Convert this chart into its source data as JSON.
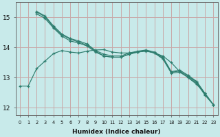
{
  "xlabel": "Humidex (Indice chaleur)",
  "background_color": "#c8eaea",
  "grid_color": "#c8a8a8",
  "line_color": "#2e7d6e",
  "xlim": [
    -0.5,
    23.5
  ],
  "ylim": [
    11.75,
    15.5
  ],
  "yticks": [
    12,
    13,
    14,
    15
  ],
  "xticks": [
    0,
    1,
    2,
    3,
    4,
    5,
    6,
    7,
    8,
    9,
    10,
    11,
    12,
    13,
    14,
    15,
    16,
    17,
    18,
    19,
    20,
    21,
    22,
    23
  ],
  "series": [
    {
      "x": [
        0,
        1,
        2,
        3,
        4,
        5,
        6,
        7,
        8,
        9,
        10,
        11,
        12,
        13,
        14,
        15,
        16,
        17,
        18,
        19,
        20,
        21,
        22,
        23
      ],
      "y": [
        12.72,
        12.72,
        13.3,
        13.55,
        13.8,
        13.9,
        13.85,
        13.82,
        13.88,
        13.92,
        13.93,
        13.85,
        13.82,
        13.82,
        13.85,
        13.9,
        13.82,
        13.72,
        13.5,
        13.2,
        13.0,
        12.78,
        12.48,
        12.1
      ]
    },
    {
      "x": [
        2,
        3,
        4,
        5,
        6,
        7,
        8,
        9,
        10,
        11,
        12,
        13,
        14,
        15,
        16,
        17,
        18,
        19,
        20,
        21,
        22,
        23
      ],
      "y": [
        15.2,
        15.05,
        14.72,
        14.45,
        14.3,
        14.22,
        14.12,
        13.9,
        13.78,
        13.72,
        13.72,
        13.82,
        13.88,
        13.92,
        13.85,
        13.68,
        13.2,
        13.25,
        13.08,
        12.88,
        12.48,
        12.1
      ]
    },
    {
      "x": [
        2,
        3,
        4,
        5,
        6,
        7,
        8,
        9,
        10,
        11,
        12,
        13,
        14,
        15,
        16,
        17,
        18,
        19,
        20,
        21,
        22,
        23
      ],
      "y": [
        15.12,
        14.97,
        14.65,
        14.38,
        14.22,
        14.15,
        14.05,
        13.85,
        13.72,
        13.68,
        13.68,
        13.78,
        13.85,
        13.88,
        13.82,
        13.62,
        13.15,
        13.18,
        13.02,
        12.82,
        12.42,
        12.1
      ]
    },
    {
      "x": [
        2,
        3,
        4,
        5,
        6,
        7,
        8,
        9,
        10,
        11,
        12,
        13,
        14,
        15,
        16,
        17,
        18,
        19,
        20,
        21,
        22,
        23
      ],
      "y": [
        15.18,
        15.02,
        14.68,
        14.42,
        14.28,
        14.18,
        14.08,
        13.88,
        13.72,
        13.68,
        13.68,
        13.78,
        13.85,
        13.9,
        13.82,
        13.65,
        13.18,
        13.22,
        13.05,
        12.85,
        12.45,
        12.1
      ]
    }
  ]
}
